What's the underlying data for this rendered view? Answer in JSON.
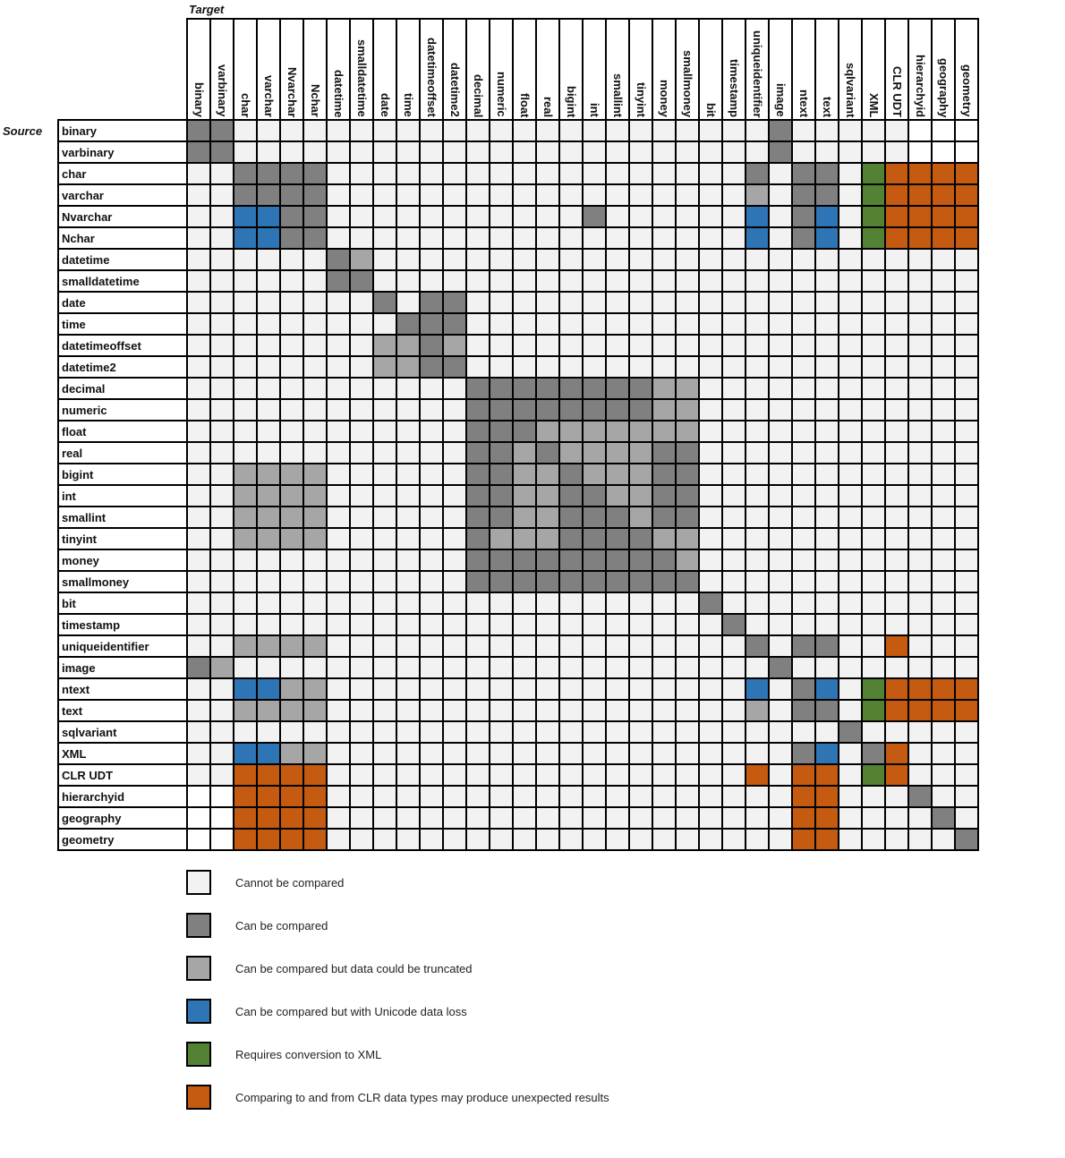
{
  "chart_data": {
    "type": "heatmap",
    "x_title": "Target",
    "y_title": "Source",
    "columns": [
      "binary",
      "varbinary",
      "char",
      "varchar",
      "Nvarchar",
      "Nchar",
      "datetime",
      "smalldatetime",
      "date",
      "time",
      "datetimeoffset",
      "datetime2",
      "decimal",
      "numeric",
      "float",
      "real",
      "bigint",
      "int",
      "smallint",
      "tinyint",
      "money",
      "smallmoney",
      "bit",
      "timestamp",
      "uniqueidentifier",
      "image",
      "ntext",
      "text",
      "sqlvariant",
      "XML",
      "CLR UDT",
      "hierarchyid",
      "geography",
      "geometry"
    ],
    "rows": [
      "binary",
      "varbinary",
      "char",
      "varchar",
      "Nvarchar",
      "Nchar",
      "datetime",
      "smalldatetime",
      "date",
      "time",
      "datetimeoffset",
      "datetime2",
      "decimal",
      "numeric",
      "float",
      "real",
      "bigint",
      "int",
      "smallint",
      "tinyint",
      "money",
      "smallmoney",
      "bit",
      "timestamp",
      "uniqueidentifier",
      "image",
      "ntext",
      "text",
      "sqlvariant",
      "XML",
      "CLR UDT",
      "hierarchyid",
      "geography",
      "geometry"
    ],
    "matrix": [
      "DD.... ...... .......... ...D.. ...WWW",
      "DD.... ...... .......... ...D.. ...WWW",
      "..DDDD ...... .......... ..D.DD .GOOOO",
      "..DDDD ...... .......... ..L.DD .GOOOO",
      "..BBDD ...... .....D.... ..B.DB .GOOOO",
      "..BBDD ...... .......... ..B.DB .GOOOO",
      "...... DL.... .......... ...... ......",
      "...... DD.... .......... ...... ......",
      "...... ..D.DD .......... ...... ......",
      "...... ...DDD .......... ...... ......",
      "...... ..LLDL .......... ...... ......",
      "...... ..LLDD .......... ...... ......",
      "...... ...... DDDDDDDDLL ...... ......",
      "...... ...... DDDDDDDDLL ...... ......",
      "...... ...... DDDLLLLLLL ...... ......",
      "...... ...... DDLDLLLLDD ...... ......",
      "..LLLL ...... DDLLDLLLDD ...... ......",
      "..LLLL ...... DDLLDDLLDD ...... ......",
      "..LLLL ...... DDLLDDDLDD ...... ......",
      "..LLLL ...... DLLLDDDDLL ...... ......",
      "...... ...... DDDDDDDDDL ...... ......",
      "...... ...... DDDDDDDDDD ...... ......",
      "...... ...... .......... D..... ......",
      "...... ...... .......... .D.... ......",
      "..LLLL ...... .......... ..D.DD ..O...",
      "DL.... ...... .......... ...D.. ......",
      "..BBLL ...... .......... ..B.DB .GOOOO",
      "..LLLL ...... .......... ..L.DD .GOOOO",
      "...... ...... .......... ...... D.....",
      "..BBLL ...... .......... ....DB .DO...",
      "..OOOO ...... .......... ..O.OO .GO...",
      "WWOOOO ...... .......... ....OO ...D..",
      "WWOOOO ...... .......... ....OO ....D.",
      "WWOOOO ...... .......... ....OO .....D"
    ],
    "colors": {
      ".": "#f2f2f2",
      "W": "#ffffff",
      "D": "#808080",
      "L": "#a6a6a6",
      "B": "#2e75b6",
      "G": "#548235",
      "O": "#c55a11"
    },
    "legend": [
      {
        "code": ".",
        "label": "Cannot be compared"
      },
      {
        "code": "D",
        "label": "Can be compared"
      },
      {
        "code": "L",
        "label": "Can be compared but data could be truncated"
      },
      {
        "code": "B",
        "label": "Can be compared but with Unicode data loss"
      },
      {
        "code": "G",
        "label": "Requires conversion to XML"
      },
      {
        "code": "O",
        "label": "Comparing to and from CLR data types may produce unexpected results"
      }
    ],
    "legend_placement": "bottom-left"
  }
}
